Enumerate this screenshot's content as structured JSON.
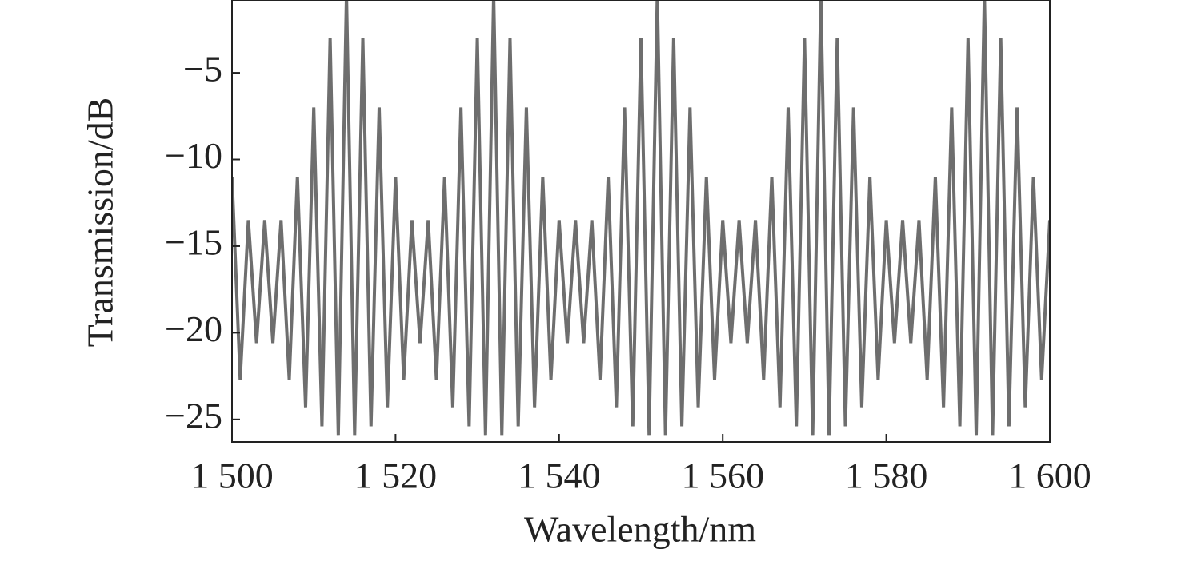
{
  "chart_data": {
    "type": "line",
    "x_label": "Wavelength/nm",
    "y_label": "Transmission/dB",
    "x": [
      1500,
      1501,
      1502,
      1503,
      1504,
      1505,
      1506,
      1507,
      1508,
      1509,
      1510,
      1511,
      1512,
      1513,
      1514,
      1515,
      1516,
      1517,
      1518,
      1519,
      1520,
      1521,
      1522,
      1523,
      1524,
      1525,
      1526,
      1527,
      1528,
      1529,
      1530,
      1531,
      1532,
      1533,
      1534,
      1535,
      1536,
      1537,
      1538,
      1539,
      1540,
      1541,
      1542,
      1543,
      1544,
      1545,
      1546,
      1547,
      1548,
      1549,
      1550,
      1551,
      1552,
      1553,
      1554,
      1555,
      1556,
      1557,
      1558,
      1559,
      1560,
      1561,
      1562,
      1563,
      1564,
      1565,
      1566,
      1567,
      1568,
      1569,
      1570,
      1571,
      1572,
      1573,
      1574,
      1575,
      1576,
      1577,
      1578,
      1579,
      1580,
      1581,
      1582,
      1583,
      1584,
      1585,
      1586,
      1587,
      1588,
      1589,
      1590,
      1591,
      1592,
      1593,
      1594,
      1595,
      1596,
      1597,
      1598,
      1599,
      1600
    ],
    "series": [
      {
        "color": "#6e6e6e",
        "values": [
          -11,
          -22.7,
          -13.5,
          -20.6,
          -13.5,
          -20.6,
          -13.5,
          -22.7,
          -11,
          -24.3,
          -7,
          -25.4,
          -3,
          -25.9,
          -0.5,
          -25.9,
          -3,
          -25.4,
          -7,
          -24.3,
          -11,
          -22.7,
          -13.5,
          -20.6,
          -13.5,
          -22.7,
          -11,
          -24.3,
          -7,
          -25.4,
          -3,
          -25.9,
          -0.5,
          -25.9,
          -3,
          -25.4,
          -7,
          -24.3,
          -11,
          -22.7,
          -13.5,
          -20.6,
          -13.5,
          -20.6,
          -13.5,
          -22.7,
          -11,
          -24.3,
          -7,
          -25.4,
          -3,
          -25.9,
          -0.5,
          -25.9,
          -3,
          -25.4,
          -7,
          -24.3,
          -11,
          -22.7,
          -13.5,
          -20.6,
          -13.5,
          -20.6,
          -13.5,
          -22.7,
          -11,
          -24.3,
          -7,
          -25.4,
          -3,
          -25.9,
          -0.5,
          -25.9,
          -3,
          -25.4,
          -7,
          -24.3,
          -11,
          -22.7,
          -13.5,
          -20.6,
          -13.5,
          -20.6,
          -13.5,
          -22.7,
          -11,
          -24.3,
          -7,
          -25.4,
          -3,
          -25.9,
          -0.5,
          -25.9,
          -3,
          -25.4,
          -7,
          -24.3,
          -11,
          -22.7,
          -13.5
        ]
      }
    ],
    "xlim": [
      1500,
      1600
    ],
    "ylim": [
      -26.3,
      -0.8
    ],
    "xticks": [
      {
        "value": 1500,
        "label": "1 500"
      },
      {
        "value": 1520,
        "label": "1 520"
      },
      {
        "value": 1540,
        "label": "1 540"
      },
      {
        "value": 1560,
        "label": "1 560"
      },
      {
        "value": 1580,
        "label": "1 580"
      },
      {
        "value": 1600,
        "label": "1 600"
      }
    ],
    "yticks": [
      {
        "value": -5,
        "label": "−5"
      },
      {
        "value": -10,
        "label": "−10"
      },
      {
        "value": -15,
        "label": "−15"
      },
      {
        "value": -20,
        "label": "−20"
      },
      {
        "value": -25,
        "label": "−25"
      }
    ],
    "grid": false
  }
}
